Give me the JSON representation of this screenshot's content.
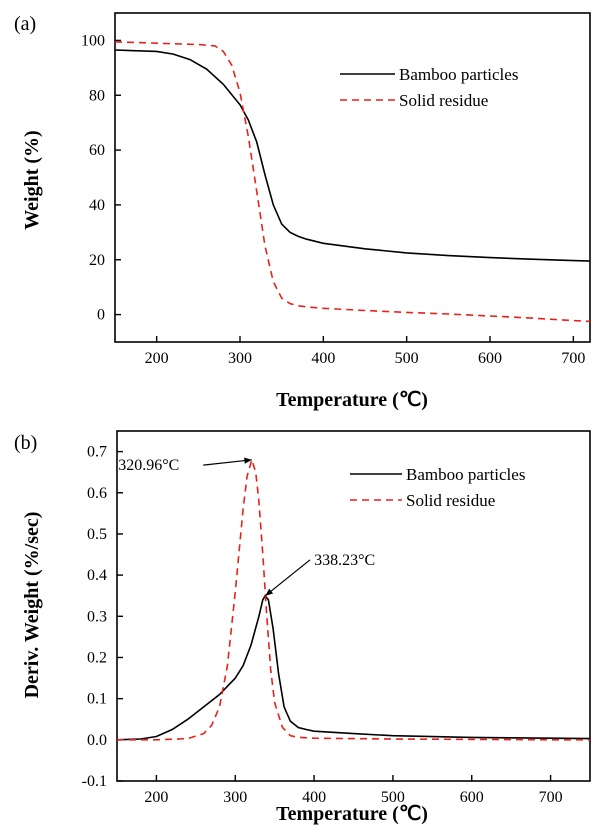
{
  "chart_data": [
    {
      "type": "line",
      "panel_label": "(a)",
      "title": "",
      "xlabel": "Temperature (℃)",
      "ylabel": "Weight (%)",
      "xlim": [
        150,
        720
      ],
      "ylim": [
        -10,
        110
      ],
      "xticks": [
        200,
        300,
        400,
        500,
        600,
        700
      ],
      "yticks": [
        0,
        20,
        40,
        60,
        80,
        100
      ],
      "grid": false,
      "legend_position": "top-right",
      "series": [
        {
          "name": "Bamboo particles",
          "color": "#000000",
          "dash": "solid",
          "x": [
            150,
            200,
            220,
            240,
            260,
            280,
            300,
            310,
            320,
            330,
            340,
            350,
            360,
            370,
            380,
            400,
            450,
            500,
            550,
            600,
            650,
            700,
            720
          ],
          "y": [
            96.5,
            96,
            95,
            93,
            89.5,
            84,
            76.5,
            71,
            63,
            51,
            40,
            33,
            30,
            28.5,
            27.5,
            26,
            24,
            22.5,
            21.5,
            20.8,
            20.2,
            19.7,
            19.5
          ]
        },
        {
          "name": "Solid residue",
          "color": "#e8211b",
          "dash": "dashed",
          "x": [
            150,
            200,
            250,
            270,
            280,
            290,
            300,
            310,
            320,
            330,
            340,
            350,
            360,
            370,
            380,
            400,
            450,
            500,
            550,
            600,
            650,
            700,
            720
          ],
          "y": [
            99.5,
            99,
            98.5,
            98,
            96,
            91,
            81,
            65,
            45,
            25,
            12,
            6,
            4,
            3.2,
            2.8,
            2.3,
            1.5,
            0.8,
            0.2,
            -0.5,
            -1.3,
            -2.2,
            -2.5
          ]
        }
      ]
    },
    {
      "type": "line",
      "panel_label": "(b)",
      "title": "",
      "xlabel": "Temperature (℃)",
      "ylabel": "Deriv. Weight (%/sec)",
      "xlim": [
        150,
        750
      ],
      "ylim": [
        -0.1,
        0.75
      ],
      "xticks": [
        200,
        300,
        400,
        500,
        600,
        700
      ],
      "yticks": [
        -0.1,
        0.0,
        0.1,
        0.2,
        0.3,
        0.4,
        0.5,
        0.6,
        0.7
      ],
      "ytick_labels": [
        "-0.1",
        "0.0",
        "0.1",
        "0.2",
        "0.3",
        "0.4",
        "0.5",
        "0.6",
        "0.7"
      ],
      "grid": false,
      "legend_position": "top-right",
      "series": [
        {
          "name": "Bamboo particles",
          "color": "#000000",
          "dash": "solid",
          "x": [
            150,
            180,
            200,
            220,
            240,
            260,
            280,
            300,
            310,
            320,
            330,
            335,
            338,
            342,
            348,
            355,
            362,
            370,
            380,
            390,
            400,
            450,
            500,
            600,
            700,
            750
          ],
          "y": [
            0.0,
            0.002,
            0.008,
            0.025,
            0.05,
            0.08,
            0.11,
            0.15,
            0.18,
            0.23,
            0.3,
            0.34,
            0.35,
            0.34,
            0.27,
            0.16,
            0.08,
            0.045,
            0.03,
            0.025,
            0.021,
            0.015,
            0.01,
            0.006,
            0.004,
            0.003
          ]
        },
        {
          "name": "Solid residue",
          "color": "#e8211b",
          "dash": "dashed",
          "x": [
            150,
            200,
            240,
            260,
            270,
            280,
            290,
            300,
            305,
            310,
            315,
            321,
            326,
            330,
            335,
            340,
            345,
            350,
            360,
            370,
            380,
            400,
            450,
            500,
            600,
            700,
            750
          ],
          "y": [
            0.0,
            0.0,
            0.003,
            0.015,
            0.035,
            0.08,
            0.18,
            0.36,
            0.46,
            0.56,
            0.64,
            0.68,
            0.65,
            0.58,
            0.45,
            0.3,
            0.17,
            0.09,
            0.03,
            0.01,
            0.006,
            0.004,
            0.003,
            0.002,
            0.001,
            0.0,
            0.0
          ]
        }
      ],
      "annotations": [
        {
          "text": "320.96°C",
          "point": [
            320.96,
            0.68
          ],
          "label_at": [
            215,
            0.655
          ]
        },
        {
          "text": "338.23°C",
          "point": [
            338.23,
            0.35
          ],
          "label_at": [
            400,
            0.425
          ]
        }
      ]
    }
  ]
}
